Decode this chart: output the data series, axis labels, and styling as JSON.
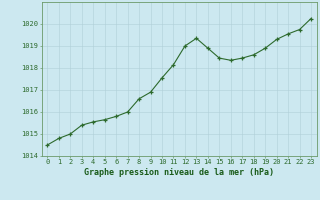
{
  "x_data": [
    0,
    1,
    2,
    3,
    4,
    5,
    6,
    7,
    8,
    9,
    10,
    11,
    12,
    13,
    14,
    15,
    16,
    17,
    18,
    19,
    20,
    21,
    22,
    23
  ],
  "y_data": [
    1014.5,
    1014.8,
    1015.0,
    1015.4,
    1015.55,
    1015.65,
    1015.8,
    1016.0,
    1016.6,
    1016.9,
    1017.55,
    1018.15,
    1019.0,
    1019.35,
    1018.9,
    1018.45,
    1018.35,
    1018.45,
    1018.6,
    1018.9,
    1019.3,
    1019.55,
    1019.75,
    1020.25
  ],
  "ylim": [
    1014,
    1021
  ],
  "yticks": [
    1014,
    1015,
    1016,
    1017,
    1018,
    1019,
    1020
  ],
  "xticks": [
    0,
    1,
    2,
    3,
    4,
    5,
    6,
    7,
    8,
    9,
    10,
    11,
    12,
    13,
    14,
    15,
    16,
    17,
    18,
    19,
    20,
    21,
    22,
    23
  ],
  "line_color": "#2d6a2d",
  "marker_color": "#2d6a2d",
  "bg_color": "#cce8f0",
  "grid_color": "#b0cfd8",
  "xlabel": "Graphe pression niveau de la mer (hPa)",
  "xlabel_color": "#1a5c1a",
  "tick_label_color": "#2d6a2d",
  "border_color": "#6a9a6a",
  "tick_fontsize": 5.0,
  "xlabel_fontsize": 6.0,
  "linewidth": 0.8,
  "markersize": 3.5,
  "markeredgewidth": 0.9
}
